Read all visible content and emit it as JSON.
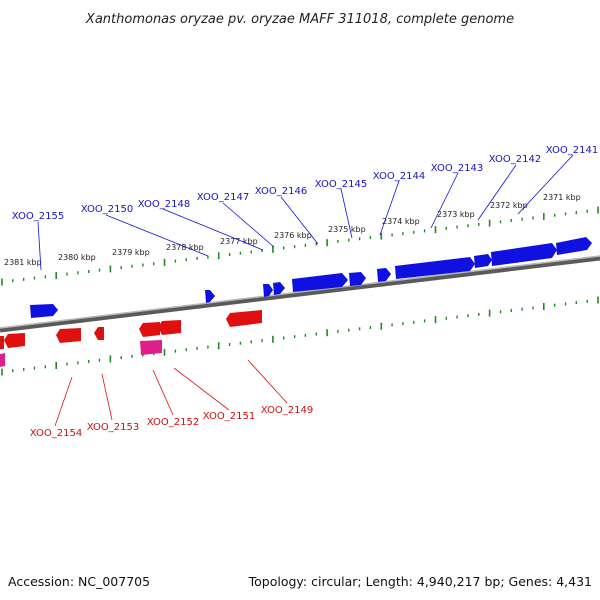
{
  "title": "Xanthomonas oryzae pv. oryzae MAFF 311018, complete genome",
  "footer": {
    "accession": "Accession: NC_007705",
    "summary": "Topology: circular; Length: 4,940,217 bp; Genes: 4,431"
  },
  "colors": {
    "forward": "#1010e0",
    "reverse": "#e01010",
    "reverse_alt": "#e0208a",
    "backbone": "#808080",
    "ticks": "#1f8a1f",
    "label_top": "#1515c8",
    "label_bot": "#cc1010"
  },
  "scale_labels": [
    "2371 kbp",
    "2372 kbp",
    "2373 kbp",
    "2374 kbp",
    "2375 kbp",
    "2376 kbp",
    "2377 kbp",
    "2378 kbp",
    "2379 kbp",
    "2380 kbp",
    "2381 kbp"
  ],
  "forward_genes": [
    "XOO_2141",
    "XOO_2142",
    "XOO_2143",
    "XOO_2144",
    "XOO_2145",
    "XOO_2146",
    "XOO_2147",
    "XOO_2148",
    "XOO_2150",
    "XOO_2155"
  ],
  "reverse_genes": [
    "XOO_2149",
    "XOO_2151",
    "XOO_2152",
    "XOO_2153",
    "XOO_2154"
  ]
}
